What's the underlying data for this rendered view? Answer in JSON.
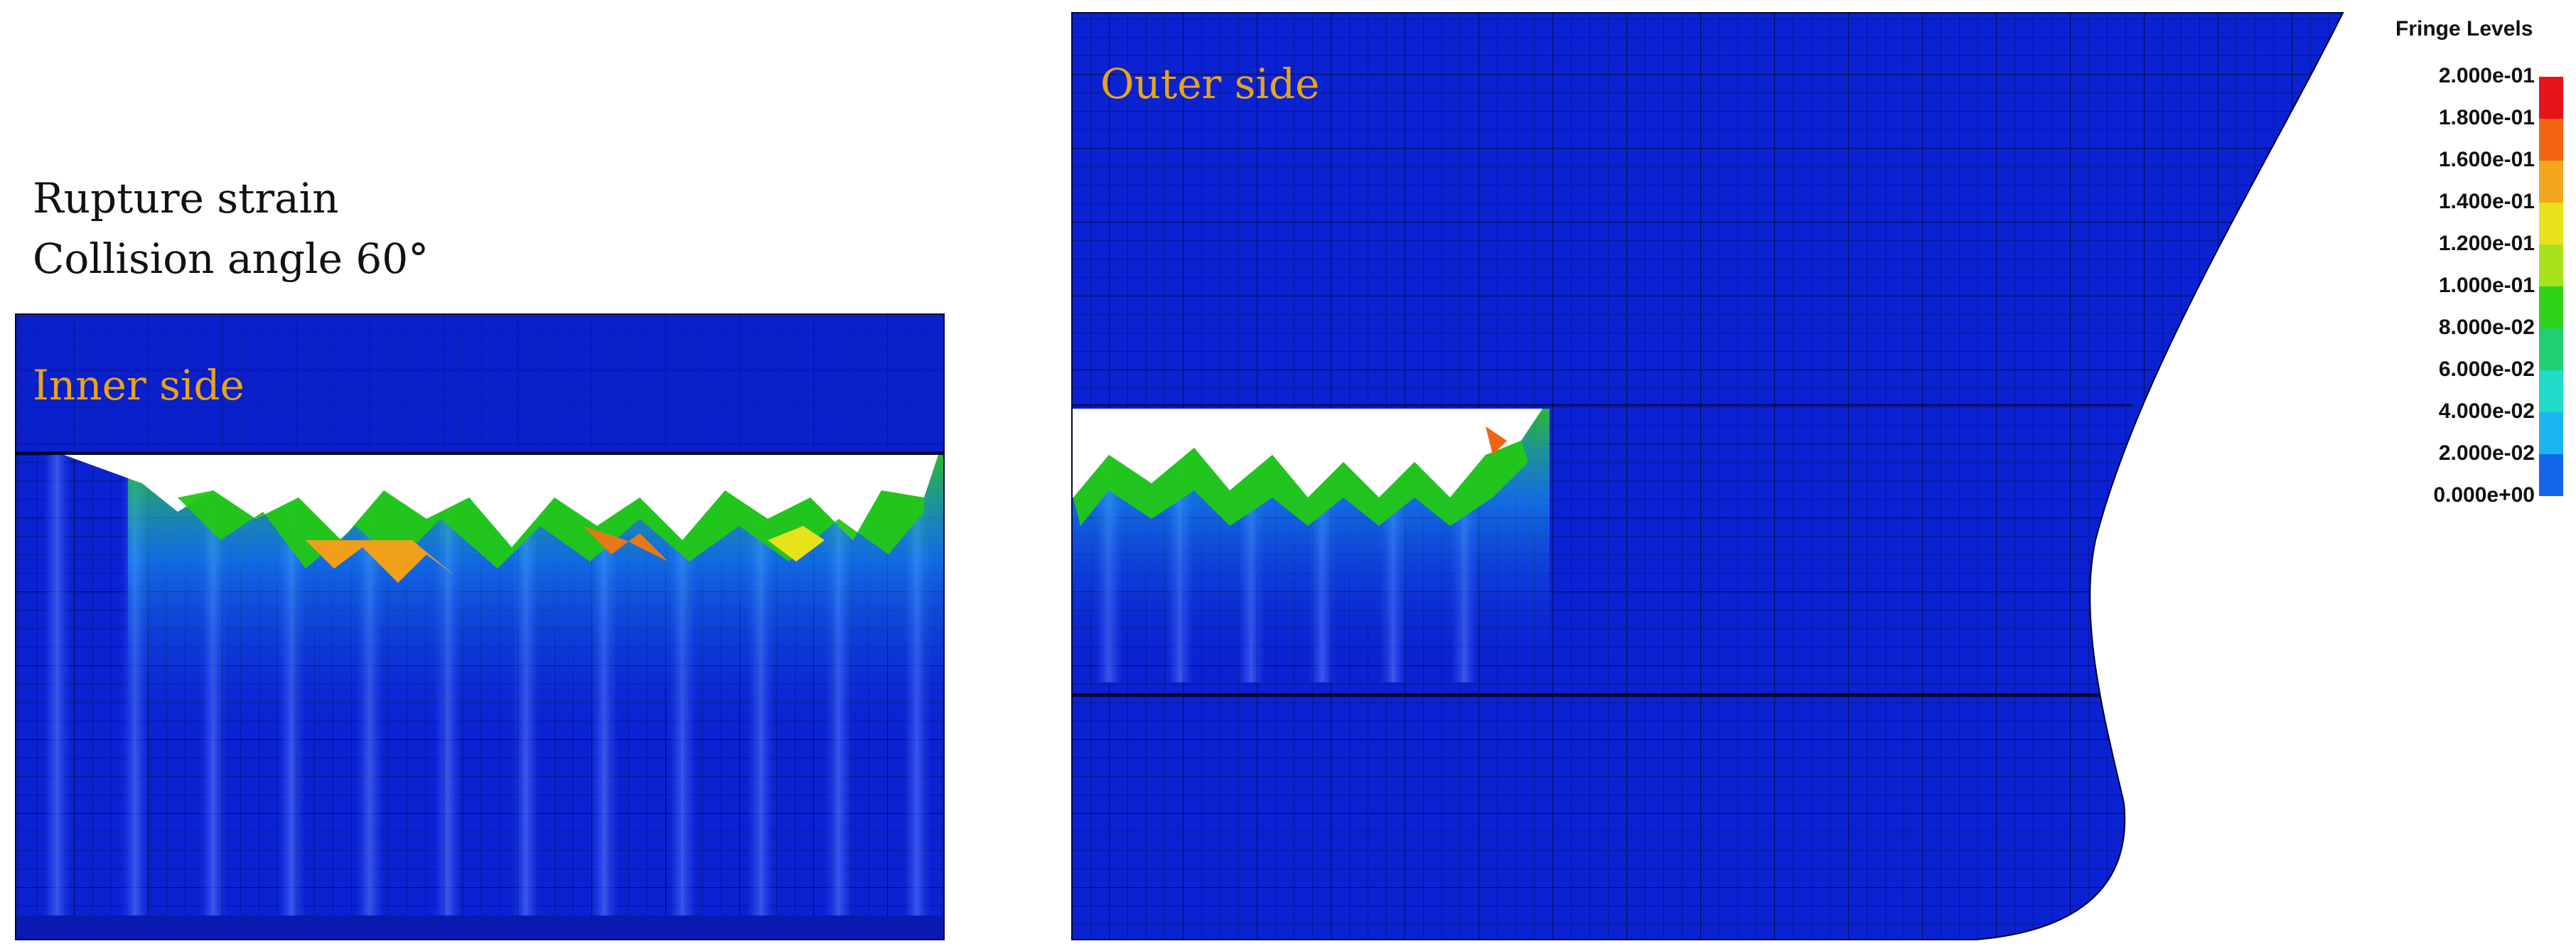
{
  "caption": {
    "line1": "Rupture strain",
    "line2": "Collision angle 60°"
  },
  "panels": {
    "inner": {
      "label": "Inner side"
    },
    "outer": {
      "label": "Outer side"
    }
  },
  "legend": {
    "title": "Fringe Levels",
    "levels": [
      "2.000e-01",
      "1.800e-01",
      "1.600e-01",
      "1.400e-01",
      "1.200e-01",
      "1.000e-01",
      "8.000e-02",
      "6.000e-02",
      "4.000e-02",
      "2.000e-02",
      "0.000e+00"
    ],
    "colors": [
      "#e8131a",
      "#f06414",
      "#f4a61c",
      "#e8e21a",
      "#a8e21c",
      "#2fd21a",
      "#1fd070",
      "#1edcc8",
      "#1ab6f0",
      "#1466e8",
      "#0a1ee6"
    ]
  },
  "colors": {
    "label_accent": "#e8a418",
    "steel_blue": "#0b22d2",
    "mesh_line": "#020a4a"
  }
}
